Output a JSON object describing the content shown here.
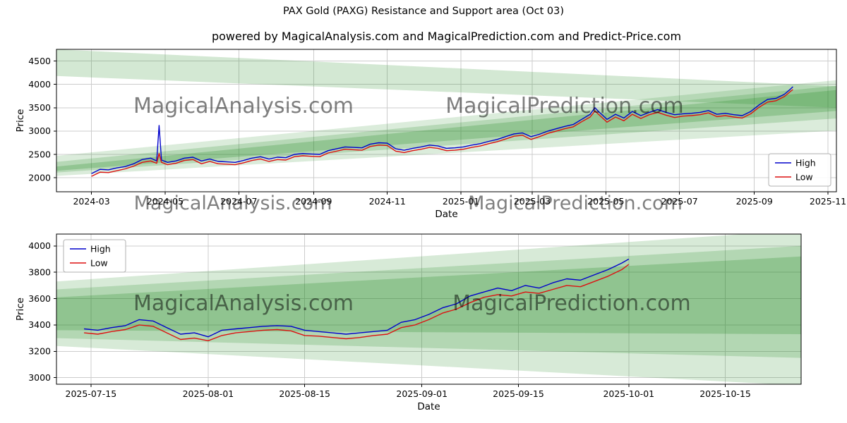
{
  "page": {
    "title": "PAX Gold (PAXG) Resistance and Support area (Oct 03)",
    "subtitle": "powered by MagicalAnalysis.com and MagicalPrediction.com and Predict-Price.com"
  },
  "watermarks": {
    "left": "MagicalAnalysis.com",
    "right": "MagicalPrediction.com"
  },
  "colors": {
    "high": "#0000cc",
    "low": "#dd1111",
    "band": "#228B22",
    "grid": "#cccccc",
    "spine": "#000000",
    "watermark": "#a0a0a0"
  },
  "chart_data": [
    {
      "type": "line",
      "name": "overview-chart",
      "xlabel": "Date",
      "ylabel": "Price",
      "xlim": [
        "2024-02-01",
        "2025-11-08"
      ],
      "ylim": [
        1700,
        4750
      ],
      "yticks": [
        2000,
        2500,
        3000,
        3500,
        4000,
        4500
      ],
      "xticks": [
        {
          "v": "2024-03-01",
          "label": "2024-03"
        },
        {
          "v": "2024-05-01",
          "label": "2024-05"
        },
        {
          "v": "2024-07-01",
          "label": "2024-07"
        },
        {
          "v": "2024-09-01",
          "label": "2024-09"
        },
        {
          "v": "2024-11-01",
          "label": "2024-11"
        },
        {
          "v": "2025-01-01",
          "label": "2025-01"
        },
        {
          "v": "2025-03-01",
          "label": "2025-03"
        },
        {
          "v": "2025-05-01",
          "label": "2025-05"
        },
        {
          "v": "2025-07-01",
          "label": "2025-07"
        },
        {
          "v": "2025-09-01",
          "label": "2025-09"
        },
        {
          "v": "2025-11-01",
          "label": "2025-11"
        }
      ],
      "legend": {
        "position": "bottom-right",
        "entries": [
          {
            "label": "High",
            "color": "high"
          },
          {
            "label": "Low",
            "color": "low"
          }
        ]
      },
      "x": [
        "2024-03-01",
        "2024-03-08",
        "2024-03-15",
        "2024-03-22",
        "2024-03-29",
        "2024-04-05",
        "2024-04-12",
        "2024-04-19",
        "2024-04-24",
        "2024-04-26",
        "2024-04-28",
        "2024-05-03",
        "2024-05-10",
        "2024-05-17",
        "2024-05-24",
        "2024-05-31",
        "2024-06-07",
        "2024-06-14",
        "2024-06-21",
        "2024-06-28",
        "2024-07-05",
        "2024-07-12",
        "2024-07-19",
        "2024-07-26",
        "2024-08-02",
        "2024-08-09",
        "2024-08-16",
        "2024-08-23",
        "2024-08-30",
        "2024-09-06",
        "2024-09-13",
        "2024-09-20",
        "2024-09-27",
        "2024-10-04",
        "2024-10-11",
        "2024-10-18",
        "2024-10-25",
        "2024-11-01",
        "2024-11-08",
        "2024-11-15",
        "2024-11-22",
        "2024-11-29",
        "2024-12-06",
        "2024-12-13",
        "2024-12-20",
        "2024-12-27",
        "2025-01-03",
        "2025-01-10",
        "2025-01-17",
        "2025-01-24",
        "2025-01-31",
        "2025-02-07",
        "2025-02-14",
        "2025-02-21",
        "2025-02-28",
        "2025-03-07",
        "2025-03-14",
        "2025-03-21",
        "2025-03-28",
        "2025-04-04",
        "2025-04-11",
        "2025-04-18",
        "2025-04-22",
        "2025-04-25",
        "2025-05-02",
        "2025-05-09",
        "2025-05-16",
        "2025-05-23",
        "2025-05-30",
        "2025-06-06",
        "2025-06-13",
        "2025-06-20",
        "2025-06-27",
        "2025-07-04",
        "2025-07-11",
        "2025-07-18",
        "2025-07-25",
        "2025-08-01",
        "2025-08-08",
        "2025-08-15",
        "2025-08-22",
        "2025-08-29",
        "2025-09-05",
        "2025-09-12",
        "2025-09-19",
        "2025-09-26",
        "2025-10-01",
        "2025-10-03"
      ],
      "series": [
        {
          "name": "High",
          "color": "high",
          "values": [
            2090,
            2180,
            2170,
            2210,
            2240,
            2300,
            2390,
            2420,
            2360,
            3120,
            2380,
            2330,
            2360,
            2420,
            2440,
            2360,
            2400,
            2350,
            2340,
            2330,
            2370,
            2420,
            2450,
            2400,
            2440,
            2430,
            2500,
            2520,
            2510,
            2500,
            2580,
            2620,
            2660,
            2650,
            2640,
            2720,
            2750,
            2740,
            2620,
            2590,
            2630,
            2660,
            2700,
            2680,
            2630,
            2640,
            2660,
            2700,
            2730,
            2780,
            2820,
            2880,
            2940,
            2960,
            2880,
            2930,
            3000,
            3050,
            3100,
            3140,
            3250,
            3360,
            3500,
            3420,
            3250,
            3360,
            3280,
            3420,
            3330,
            3400,
            3460,
            3400,
            3350,
            3370,
            3380,
            3400,
            3440,
            3360,
            3380,
            3350,
            3330,
            3420,
            3560,
            3680,
            3700,
            3790,
            3900,
            3950
          ]
        },
        {
          "name": "Low",
          "color": "low",
          "values": [
            2030,
            2120,
            2110,
            2150,
            2190,
            2250,
            2330,
            2360,
            2310,
            2520,
            2330,
            2280,
            2310,
            2370,
            2390,
            2300,
            2350,
            2300,
            2290,
            2280,
            2320,
            2370,
            2400,
            2350,
            2390,
            2380,
            2450,
            2470,
            2460,
            2450,
            2530,
            2570,
            2610,
            2600,
            2590,
            2670,
            2700,
            2690,
            2570,
            2540,
            2580,
            2610,
            2650,
            2630,
            2580,
            2590,
            2610,
            2650,
            2680,
            2730,
            2770,
            2830,
            2890,
            2910,
            2820,
            2880,
            2950,
            3000,
            3050,
            3090,
            3200,
            3300,
            3430,
            3360,
            3190,
            3300,
            3220,
            3360,
            3270,
            3350,
            3400,
            3340,
            3290,
            3320,
            3330,
            3350,
            3390,
            3310,
            3330,
            3300,
            3280,
            3370,
            3510,
            3620,
            3650,
            3740,
            3850,
            3890
          ]
        }
      ],
      "bands": [
        {
          "alpha": 0.2,
          "points": [
            [
              "2024-02-01",
              4750
            ],
            [
              "2025-11-08",
              3960
            ],
            [
              "2025-11-08",
              3500
            ],
            [
              "2024-02-01",
              4180
            ]
          ]
        },
        {
          "alpha": 0.16,
          "points": [
            [
              "2024-02-01",
              2470
            ],
            [
              "2025-11-08",
              4090
            ],
            [
              "2025-11-08",
              3010
            ],
            [
              "2024-02-01",
              2040
            ]
          ]
        },
        {
          "alpha": 0.2,
          "points": [
            [
              "2024-02-01",
              2340
            ],
            [
              "2025-11-08",
              3970
            ],
            [
              "2025-11-08",
              3270
            ],
            [
              "2024-02-01",
              2110
            ]
          ]
        },
        {
          "alpha": 0.24,
          "points": [
            [
              "2024-02-01",
              2240
            ],
            [
              "2025-11-08",
              3880
            ],
            [
              "2025-11-08",
              3430
            ],
            [
              "2024-02-01",
              2150
            ]
          ]
        }
      ]
    },
    {
      "type": "line",
      "name": "recent-chart",
      "xlabel": "Date",
      "ylabel": "Price",
      "xlim": [
        "2025-07-10",
        "2025-10-26"
      ],
      "ylim": [
        2950,
        4090
      ],
      "yticks": [
        3000,
        3200,
        3400,
        3600,
        3800,
        4000
      ],
      "xticks": [
        {
          "v": "2025-07-15",
          "label": "2025-07-15"
        },
        {
          "v": "2025-08-01",
          "label": "2025-08-01"
        },
        {
          "v": "2025-08-15",
          "label": "2025-08-15"
        },
        {
          "v": "2025-09-01",
          "label": "2025-09-01"
        },
        {
          "v": "2025-09-15",
          "label": "2025-09-15"
        },
        {
          "v": "2025-10-01",
          "label": "2025-10-01"
        },
        {
          "v": "2025-10-15",
          "label": "2025-10-15"
        }
      ],
      "legend": {
        "position": "top-left",
        "entries": [
          {
            "label": "High",
            "color": "high"
          },
          {
            "label": "Low",
            "color": "low"
          }
        ]
      },
      "x": [
        "2025-07-14",
        "2025-07-16",
        "2025-07-18",
        "2025-07-20",
        "2025-07-22",
        "2025-07-24",
        "2025-07-26",
        "2025-07-28",
        "2025-07-30",
        "2025-08-01",
        "2025-08-03",
        "2025-08-05",
        "2025-08-07",
        "2025-08-09",
        "2025-08-11",
        "2025-08-13",
        "2025-08-15",
        "2025-08-17",
        "2025-08-19",
        "2025-08-21",
        "2025-08-23",
        "2025-08-25",
        "2025-08-27",
        "2025-08-29",
        "2025-08-31",
        "2025-09-02",
        "2025-09-04",
        "2025-09-06",
        "2025-09-08",
        "2025-09-10",
        "2025-09-12",
        "2025-09-14",
        "2025-09-16",
        "2025-09-18",
        "2025-09-20",
        "2025-09-22",
        "2025-09-24",
        "2025-09-26",
        "2025-09-28",
        "2025-09-30",
        "2025-10-01"
      ],
      "series": [
        {
          "name": "High",
          "color": "high",
          "values": [
            3370,
            3360,
            3380,
            3395,
            3440,
            3430,
            3380,
            3330,
            3340,
            3310,
            3360,
            3370,
            3380,
            3390,
            3395,
            3390,
            3360,
            3350,
            3340,
            3330,
            3340,
            3350,
            3360,
            3420,
            3440,
            3480,
            3530,
            3560,
            3620,
            3650,
            3680,
            3660,
            3700,
            3680,
            3720,
            3750,
            3740,
            3780,
            3820,
            3870,
            3900
          ]
        },
        {
          "name": "Low",
          "color": "low",
          "values": [
            3340,
            3330,
            3350,
            3365,
            3400,
            3390,
            3340,
            3290,
            3300,
            3280,
            3320,
            3340,
            3350,
            3360,
            3365,
            3355,
            3320,
            3315,
            3305,
            3295,
            3305,
            3320,
            3330,
            3380,
            3400,
            3440,
            3490,
            3520,
            3570,
            3610,
            3630,
            3620,
            3650,
            3640,
            3670,
            3700,
            3690,
            3730,
            3770,
            3820,
            3860
          ]
        }
      ],
      "bands": [
        {
          "alpha": 0.18,
          "points": [
            [
              "2025-07-10",
              3730
            ],
            [
              "2025-10-26",
              4120
            ],
            [
              "2025-10-26",
              2940
            ],
            [
              "2025-07-10",
              3240
            ]
          ]
        },
        {
          "alpha": 0.2,
          "points": [
            [
              "2025-07-10",
              3670
            ],
            [
              "2025-10-26",
              4000
            ],
            [
              "2025-10-26",
              3150
            ],
            [
              "2025-07-10",
              3300
            ]
          ]
        },
        {
          "alpha": 0.24,
          "points": [
            [
              "2025-07-10",
              3610
            ],
            [
              "2025-10-26",
              3920
            ],
            [
              "2025-10-26",
              3330
            ],
            [
              "2025-07-10",
              3360
            ]
          ]
        }
      ]
    }
  ]
}
